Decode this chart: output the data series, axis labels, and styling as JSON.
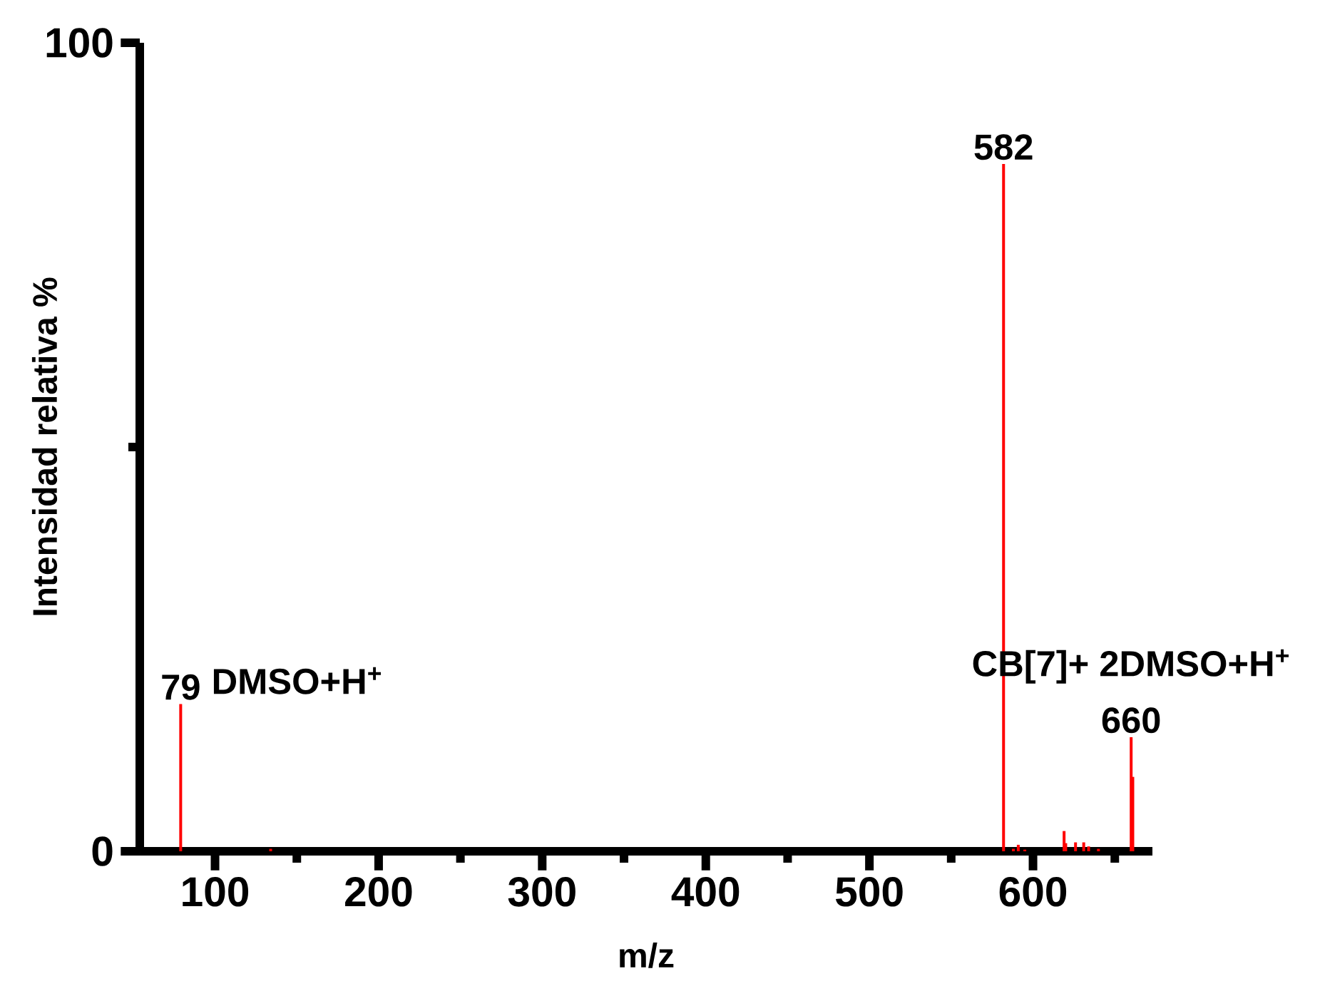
{
  "chart_data": {
    "type": "bar",
    "xlabel": "m/z",
    "ylabel": "Intensidad relativa %",
    "x": [
      79,
      134,
      582,
      588,
      591,
      595,
      619,
      620,
      626,
      631,
      634,
      640,
      660,
      661
    ],
    "values": [
      18.2,
      0.3,
      85,
      0.3,
      0.8,
      0.2,
      2.5,
      1.0,
      1.1,
      1.1,
      0.6,
      0.3,
      14.1,
      9.2
    ],
    "color": "#ff0000",
    "xlim": [
      54,
      673
    ],
    "ylim": [
      0,
      100
    ],
    "xticks": [
      100,
      {
        "value": 150,
        "label": null
      },
      200,
      {
        "value": 250,
        "label": null
      },
      300,
      {
        "value": 350,
        "label": null
      },
      400,
      {
        "value": 450,
        "label": null
      },
      500,
      {
        "value": 550,
        "label": null
      },
      600,
      {
        "value": 650,
        "label": null
      }
    ],
    "yticks": [
      0,
      {
        "value": 50,
        "label": null
      },
      100
    ],
    "annotations": [
      {
        "text": "79",
        "x": 79,
        "y": 18.2
      },
      {
        "text": "DMSO+H$^{+}$",
        "x": 79,
        "y": 18.2
      },
      {
        "text": "582",
        "x": 582,
        "y": 85
      },
      {
        "text": "660",
        "x": 660,
        "y": 14.1
      },
      {
        "text": "CB[7]+ 2DMSO+H$^{+}$",
        "x": 660,
        "y": 14.1
      }
    ]
  }
}
